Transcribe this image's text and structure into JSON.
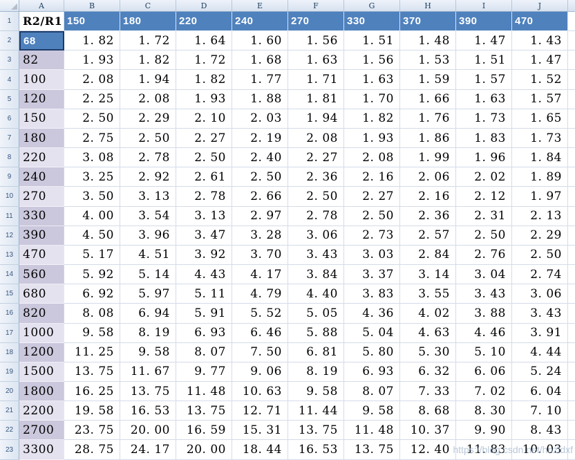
{
  "watermark": "https://blog.csdn.net/hnzldxf",
  "colors": {
    "accent_blue": "#4f81bd",
    "selected_cell_border": "#1e3c6b",
    "column_a_light": "#e4e2ef",
    "column_a_dark": "#cbc8dd",
    "gridline": "#d4dbe8",
    "header_strip_border": "#9eb6ce"
  },
  "column_headers": [
    "A",
    "B",
    "C",
    "D",
    "E",
    "F",
    "G",
    "H",
    "I",
    "J"
  ],
  "table": {
    "header_row": {
      "num": "1",
      "corner_label": "R2/R1",
      "values": [
        "150",
        "180",
        "220",
        "240",
        "270",
        "330",
        "370",
        "390",
        "470"
      ]
    },
    "rows": [
      {
        "num": "2",
        "label": "68",
        "state": "selected",
        "shade": "light",
        "values": [
          "1.82",
          "1.72",
          "1.64",
          "1.60",
          "1.56",
          "1.51",
          "1.48",
          "1.47",
          "1.43"
        ]
      },
      {
        "num": "3",
        "label": "82",
        "state": "normal",
        "shade": "dark",
        "values": [
          "1.93",
          "1.82",
          "1.72",
          "1.68",
          "1.63",
          "1.56",
          "1.53",
          "1.51",
          "1.47"
        ]
      },
      {
        "num": "4",
        "label": "100",
        "state": "normal",
        "shade": "light",
        "values": [
          "2.08",
          "1.94",
          "1.82",
          "1.77",
          "1.71",
          "1.63",
          "1.59",
          "1.57",
          "1.52"
        ]
      },
      {
        "num": "5",
        "label": "120",
        "state": "normal",
        "shade": "dark",
        "values": [
          "2.25",
          "2.08",
          "1.93",
          "1.88",
          "1.81",
          "1.70",
          "1.66",
          "1.63",
          "1.57"
        ]
      },
      {
        "num": "6",
        "label": "150",
        "state": "normal",
        "shade": "light",
        "values": [
          "2.50",
          "2.29",
          "2.10",
          "2.03",
          "1.94",
          "1.82",
          "1.76",
          "1.73",
          "1.65"
        ]
      },
      {
        "num": "7",
        "label": "180",
        "state": "normal",
        "shade": "dark",
        "values": [
          "2.75",
          "2.50",
          "2.27",
          "2.19",
          "2.08",
          "1.93",
          "1.86",
          "1.83",
          "1.73"
        ]
      },
      {
        "num": "8",
        "label": "220",
        "state": "normal",
        "shade": "light",
        "values": [
          "3.08",
          "2.78",
          "2.50",
          "2.40",
          "2.27",
          "2.08",
          "1.99",
          "1.96",
          "1.84"
        ]
      },
      {
        "num": "9",
        "label": "240",
        "state": "normal",
        "shade": "dark",
        "values": [
          "3.25",
          "2.92",
          "2.61",
          "2.50",
          "2.36",
          "2.16",
          "2.06",
          "2.02",
          "1.89"
        ]
      },
      {
        "num": "10",
        "label": "270",
        "state": "normal",
        "shade": "light",
        "values": [
          "3.50",
          "3.13",
          "2.78",
          "2.66",
          "2.50",
          "2.27",
          "2.16",
          "2.12",
          "1.97"
        ]
      },
      {
        "num": "11",
        "label": "330",
        "state": "normal",
        "shade": "dark",
        "values": [
          "4.00",
          "3.54",
          "3.13",
          "2.97",
          "2.78",
          "2.50",
          "2.36",
          "2.31",
          "2.13"
        ]
      },
      {
        "num": "12",
        "label": "390",
        "state": "normal",
        "shade": "dark",
        "values": [
          "4.50",
          "3.96",
          "3.47",
          "3.28",
          "3.06",
          "2.73",
          "2.57",
          "2.50",
          "2.29"
        ]
      },
      {
        "num": "13",
        "label": "470",
        "state": "normal",
        "shade": "light",
        "values": [
          "5.17",
          "4.51",
          "3.92",
          "3.70",
          "3.43",
          "3.03",
          "2.84",
          "2.76",
          "2.50"
        ]
      },
      {
        "num": "14",
        "label": "560",
        "state": "normal",
        "shade": "dark",
        "values": [
          "5.92",
          "5.14",
          "4.43",
          "4.17",
          "3.84",
          "3.37",
          "3.14",
          "3.04",
          "2.74"
        ]
      },
      {
        "num": "15",
        "label": "680",
        "state": "normal",
        "shade": "light",
        "values": [
          "6.92",
          "5.97",
          "5.11",
          "4.79",
          "4.40",
          "3.83",
          "3.55",
          "3.43",
          "3.06"
        ]
      },
      {
        "num": "16",
        "label": "820",
        "state": "normal",
        "shade": "dark",
        "values": [
          "8.08",
          "6.94",
          "5.91",
          "5.52",
          "5.05",
          "4.36",
          "4.02",
          "3.88",
          "3.43"
        ]
      },
      {
        "num": "17",
        "label": "1000",
        "state": "normal",
        "shade": "light",
        "values": [
          "9.58",
          "8.19",
          "6.93",
          "6.46",
          "5.88",
          "5.04",
          "4.63",
          "4.46",
          "3.91"
        ]
      },
      {
        "num": "18",
        "label": "1200",
        "state": "normal",
        "shade": "dark",
        "values": [
          "11.25",
          "9.58",
          "8.07",
          "7.50",
          "6.81",
          "5.80",
          "5.30",
          "5.10",
          "4.44"
        ]
      },
      {
        "num": "19",
        "label": "1500",
        "state": "normal",
        "shade": "light",
        "values": [
          "13.75",
          "11.67",
          "9.77",
          "9.06",
          "8.19",
          "6.93",
          "6.32",
          "6.06",
          "5.24"
        ]
      },
      {
        "num": "20",
        "label": "1800",
        "state": "normal",
        "shade": "dark",
        "values": [
          "16.25",
          "13.75",
          "11.48",
          "10.63",
          "9.58",
          "8.07",
          "7.33",
          "7.02",
          "6.04"
        ]
      },
      {
        "num": "21",
        "label": "2200",
        "state": "normal",
        "shade": "light",
        "values": [
          "19.58",
          "16.53",
          "13.75",
          "12.71",
          "11.44",
          "9.58",
          "8.68",
          "8.30",
          "7.10"
        ]
      },
      {
        "num": "22",
        "label": "2700",
        "state": "normal",
        "shade": "dark",
        "values": [
          "23.75",
          "20.00",
          "16.59",
          "15.31",
          "13.75",
          "11.48",
          "10.37",
          "9.90",
          "8.43"
        ]
      },
      {
        "num": "23",
        "label": "3300",
        "state": "normal",
        "shade": "light",
        "values": [
          "28.75",
          "24.17",
          "20.00",
          "18.44",
          "16.53",
          "13.75",
          "12.40",
          "11.83",
          "10.03"
        ]
      }
    ]
  }
}
